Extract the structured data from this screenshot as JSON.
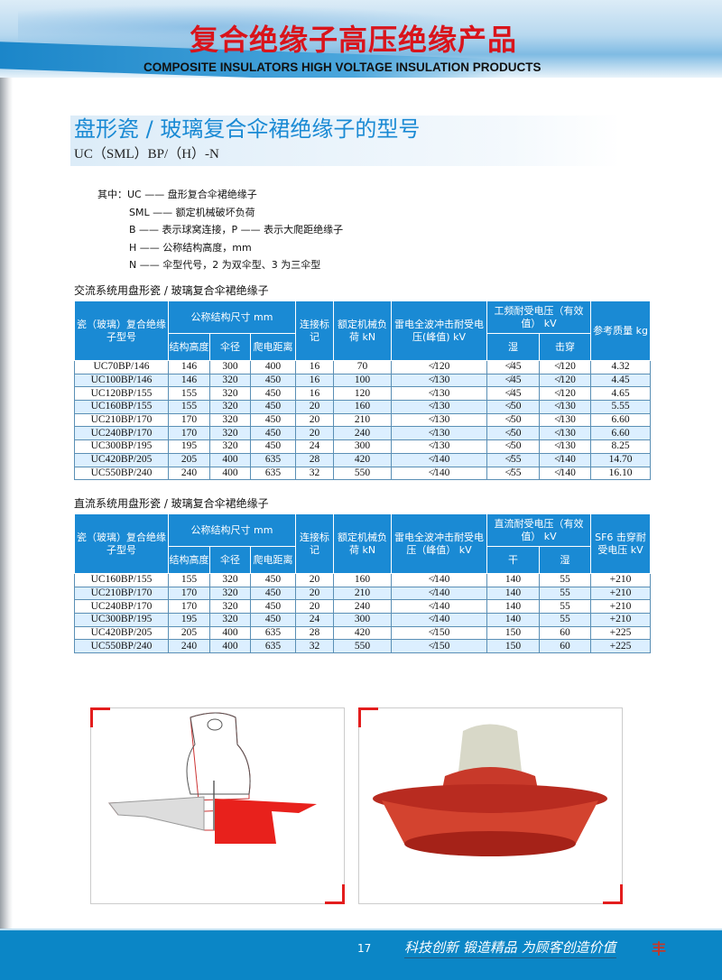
{
  "header": {
    "title_cn": "复合绝缘子高压绝缘产品",
    "title_en": "COMPOSITE INSULATORS HIGH VOLTAGE INSULATION PRODUCTS"
  },
  "section": {
    "title": "盘形瓷 / 玻璃复合伞裙绝缘子的型号",
    "code": "UC（SML）BP/（H）-N"
  },
  "legend": [
    "其中：UC —— 盘形复合伞裙绝缘子",
    "SML —— 额定机械破坏负荷",
    "B —— 表示球窝连接，P —— 表示大爬距绝缘子",
    "H —— 公称结构高度，mm",
    "N —— 伞型代号，2 为双伞型、3 为三伞型"
  ],
  "ac": {
    "caption": "交流系统用盘形瓷 / 玻璃复合伞裙绝缘子",
    "h": {
      "model": "瓷（玻璃）复合绝缘子型号",
      "dims": "公称结构尺寸 mm",
      "height": "结构高度",
      "dia": "伞径",
      "creep": "爬电距离",
      "mark": "连接标记",
      "load": "额定机械负荷 kN",
      "impulse": "雷电全波冲击耐受电压(峰值) kV",
      "pf": "工频耐受电压（有效值） kV",
      "wet": "湿",
      "punct": "击穿",
      "mass": "参考质量 kg"
    },
    "rows": [
      [
        "UC70BP/146",
        "146",
        "300",
        "400",
        "16",
        "70",
        "≮120",
        "≮45",
        "≮120",
        "4.32"
      ],
      [
        "UC100BP/146",
        "146",
        "320",
        "450",
        "16",
        "100",
        "≮130",
        "≮45",
        "≮120",
        "4.45"
      ],
      [
        "UC120BP/155",
        "155",
        "320",
        "450",
        "16",
        "120",
        "≮130",
        "≮45",
        "≮120",
        "4.65"
      ],
      [
        "UC160BP/155",
        "155",
        "320",
        "450",
        "20",
        "160",
        "≮130",
        "≮50",
        "≮130",
        "5.55"
      ],
      [
        "UC210BP/170",
        "170",
        "320",
        "450",
        "20",
        "210",
        "≮130",
        "≮50",
        "≮130",
        "6.60"
      ],
      [
        "UC240BP/170",
        "170",
        "320",
        "450",
        "20",
        "240",
        "≮130",
        "≮50",
        "≮130",
        "6.60"
      ],
      [
        "UC300BP/195",
        "195",
        "320",
        "450",
        "24",
        "300",
        "≮130",
        "≮50",
        "≮130",
        "8.25"
      ],
      [
        "UC420BP/205",
        "205",
        "400",
        "635",
        "28",
        "420",
        "≮140",
        "≮55",
        "≮140",
        "14.70"
      ],
      [
        "UC550BP/240",
        "240",
        "400",
        "635",
        "32",
        "550",
        "≮140",
        "≮55",
        "≮140",
        "16.10"
      ]
    ]
  },
  "dc": {
    "caption": "直流系统用盘形瓷 / 玻璃复合伞裙绝缘子",
    "h": {
      "model": "瓷（玻璃）复合绝缘子型号",
      "dims": "公称结构尺寸 mm",
      "height": "结构高度",
      "dia": "伞径",
      "creep": "爬电距离",
      "mark": "连接标记",
      "load": "额定机械负荷 kN",
      "impulse": "雷电全波冲击耐受电压（峰值） kV",
      "dcv": "直流耐受电压（有效值） kV",
      "dry": "干",
      "wet": "湿",
      "sf6": "SF6 击穿耐受电压 kV"
    },
    "rows": [
      [
        "UC160BP/155",
        "155",
        "320",
        "450",
        "20",
        "160",
        "≮140",
        "140",
        "55",
        "+210"
      ],
      [
        "UC210BP/170",
        "170",
        "320",
        "450",
        "20",
        "210",
        "≮140",
        "140",
        "55",
        "+210"
      ],
      [
        "UC240BP/170",
        "170",
        "320",
        "450",
        "20",
        "240",
        "≮140",
        "140",
        "55",
        "+210"
      ],
      [
        "UC300BP/195",
        "195",
        "320",
        "450",
        "24",
        "300",
        "≮140",
        "140",
        "55",
        "+210"
      ],
      [
        "UC420BP/205",
        "205",
        "400",
        "635",
        "28",
        "420",
        "≮150",
        "150",
        "60",
        "+225"
      ],
      [
        "UC550BP/240",
        "240",
        "400",
        "635",
        "32",
        "550",
        "≮150",
        "150",
        "60",
        "+225"
      ]
    ]
  },
  "footer": {
    "page": "17",
    "slogan": "科技创新 锻造精品 为顾客创造价值"
  },
  "colors": {
    "brand_blue": "#1a8ad4",
    "title_red": "#d9141b",
    "row_alt": "#dcefff"
  }
}
